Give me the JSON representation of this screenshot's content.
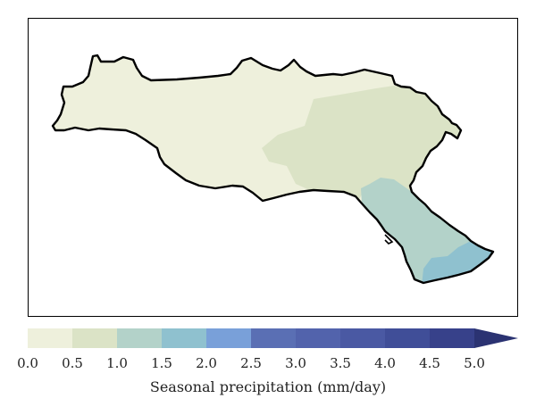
{
  "legend": {
    "title": "Seasonal precipitation (mm/day)",
    "ticks": [
      "0.0",
      "0.5",
      "1.0",
      "1.5",
      "2.0",
      "2.5",
      "3.0",
      "3.5",
      "4.0",
      "4.5",
      "5.0"
    ],
    "bins": [
      {
        "range": "0.0-0.5",
        "color": "#eef0dc"
      },
      {
        "range": "0.5-1.0",
        "color": "#dbe3c6"
      },
      {
        "range": "1.0-1.5",
        "color": "#b3d2c9"
      },
      {
        "range": "1.5-2.0",
        "color": "#8fc1cf"
      },
      {
        "range": "2.0-2.5",
        "color": "#79a0d9"
      },
      {
        "range": "2.5-3.0",
        "color": "#5a6fb4"
      },
      {
        "range": "3.0-3.5",
        "color": "#5263ac"
      },
      {
        "range": "3.5-4.0",
        "color": "#4a59a3"
      },
      {
        "range": "4.0-4.5",
        "color": "#404e98"
      },
      {
        "range": "4.5-5.0",
        "color": "#37418a"
      }
    ],
    "extend_color": "#2b3372"
  },
  "map": {
    "regions": [
      {
        "class": "0.0-0.5",
        "color": "#eef0dc"
      },
      {
        "class": "0.5-1.0",
        "color": "#dbe3c6"
      },
      {
        "class": "1.0-1.5",
        "color": "#b3d2c9"
      },
      {
        "class": "1.5-2.0",
        "color": "#8fc1cf"
      }
    ],
    "border_color": "#000000"
  }
}
